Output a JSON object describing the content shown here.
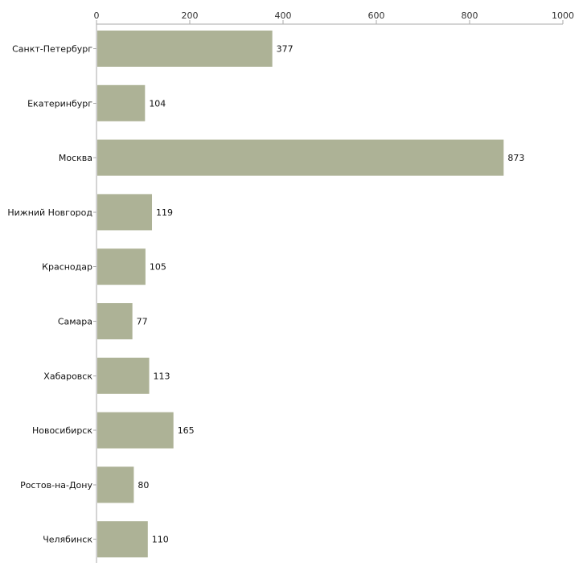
{
  "chart_data": {
    "type": "bar",
    "orientation": "horizontal",
    "title": "",
    "xlabel": "",
    "ylabel": "",
    "xlim": [
      0,
      1000
    ],
    "x_ticks": [
      0,
      200,
      400,
      600,
      800,
      1000
    ],
    "x_tick_labels": [
      "0",
      "200",
      "400",
      "600",
      "800",
      "1000"
    ],
    "x_axis_position": "top",
    "grid": false,
    "categories": [
      "Санкт-Петербург",
      "Екатеринбург",
      "Москва",
      "Нижний Новгород",
      "Краснодар",
      "Самара",
      "Хабаровск",
      "Новосибирск",
      "Ростов-на-Дону",
      "Челябинск"
    ],
    "values": [
      377,
      104,
      873,
      119,
      105,
      77,
      113,
      165,
      80,
      110
    ],
    "value_labels": [
      "377",
      "104",
      "873",
      "119",
      "105",
      "77",
      "113",
      "165",
      "80",
      "110"
    ],
    "bar_color": "#adb296",
    "axis_color": "#aaaaaa"
  }
}
